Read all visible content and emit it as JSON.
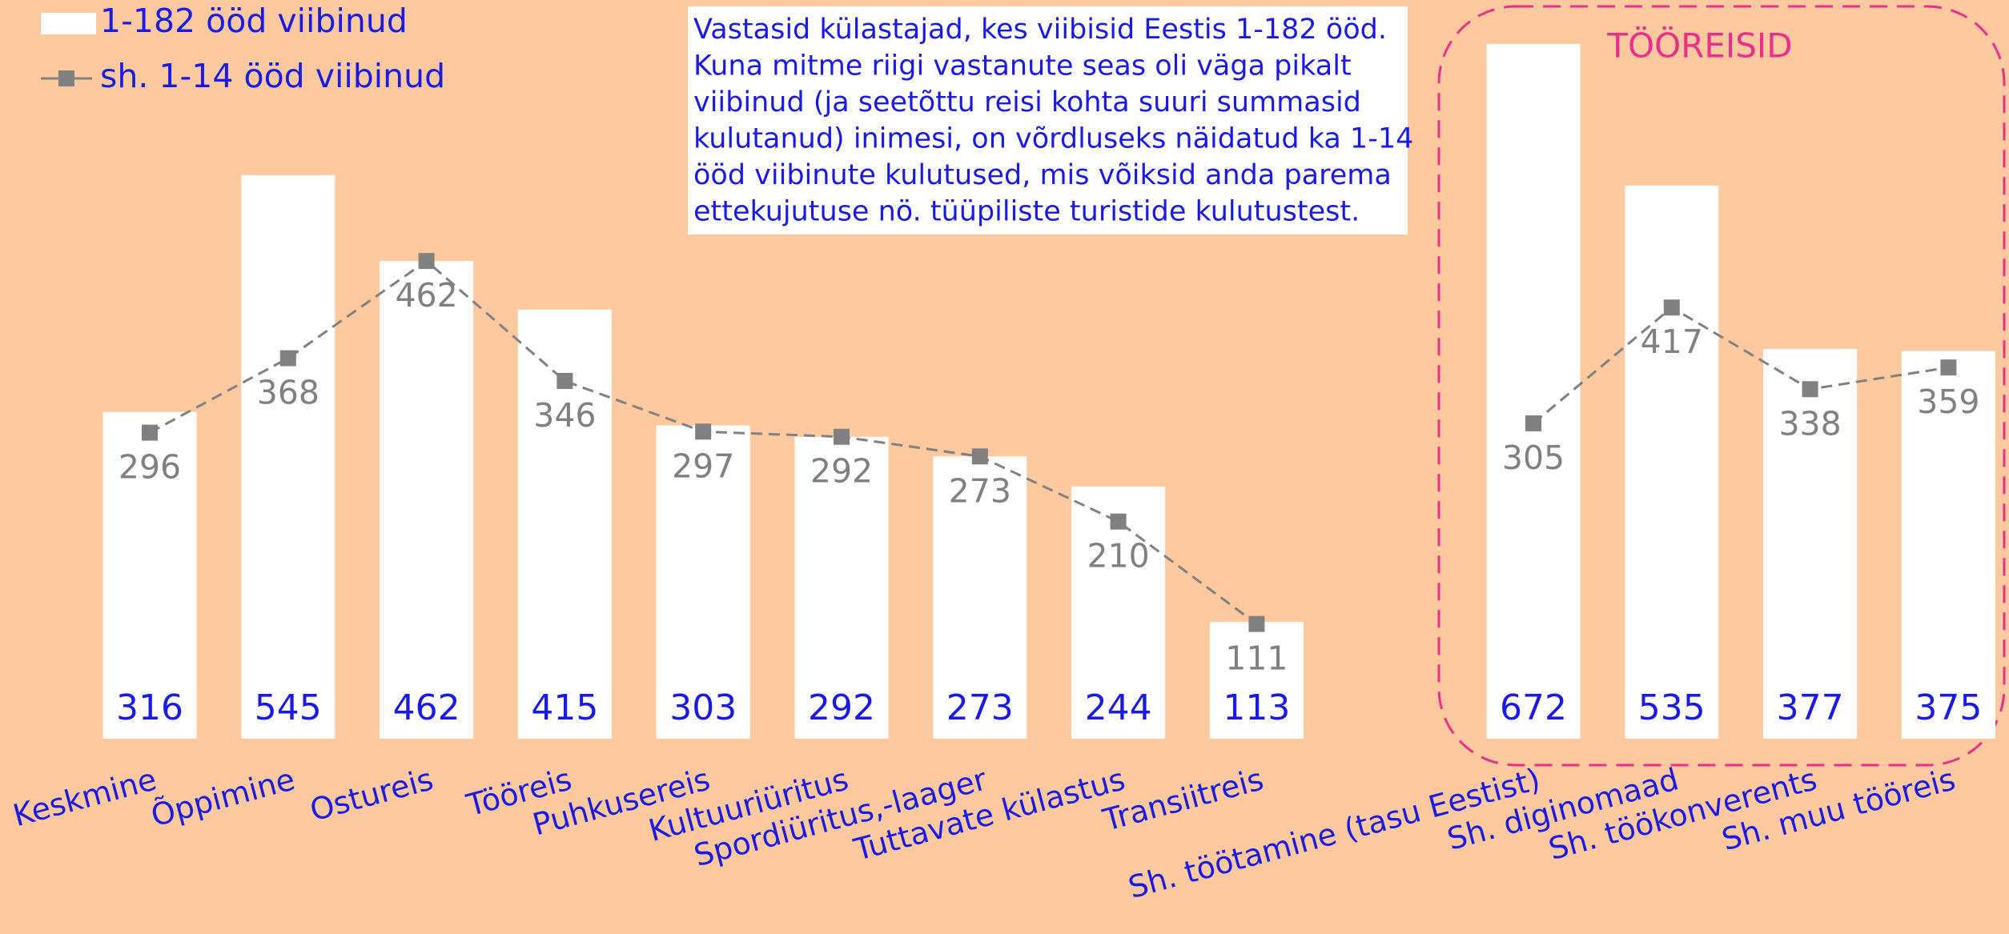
{
  "chart_data": {
    "type": "bar-line",
    "categories": [
      "Keskmine",
      "Õppimine",
      "Ostureis",
      "Tööreis",
      "Puhkusereis",
      "Kultuuriüritus",
      "Spordiüritus,-laager",
      "Tuttavate külastus",
      "Transiitreis",
      null,
      "Sh. töötamine (tasu Eestist)",
      "Sh. diginomaad",
      "Sh. töökonverents",
      "Sh. muu tööreis"
    ],
    "series": [
      {
        "name": "1-182 ööd viibinud",
        "type": "bar",
        "color": "#ffffff",
        "values": [
          316,
          545,
          462,
          415,
          303,
          292,
          273,
          244,
          113,
          null,
          672,
          535,
          377,
          375
        ]
      },
      {
        "name": "sh. 1-14 ööd viibinud",
        "type": "line",
        "color": "#808080",
        "values": [
          296,
          368,
          462,
          346,
          297,
          292,
          273,
          210,
          111,
          null,
          305,
          417,
          338,
          359
        ]
      }
    ],
    "annotation": [
      "Vastasid külastajad, kes viibisid Eestis 1-182 ööd.",
      "Kuna mitme riigi vastanute seas oli väga pikalt",
      "viibinud (ja seetõttu reisi kohta suuri summasid",
      "kulutanud) inimesi, on võrdluseks näidatud ka 1-14",
      "ööd viibinute kulutused, mis võiksid anda parema",
      "ettekujutuse nö. tüüpiliste turistide kulutustest."
    ],
    "group_label": "TÖÖREISID",
    "legend": "top-left"
  }
}
